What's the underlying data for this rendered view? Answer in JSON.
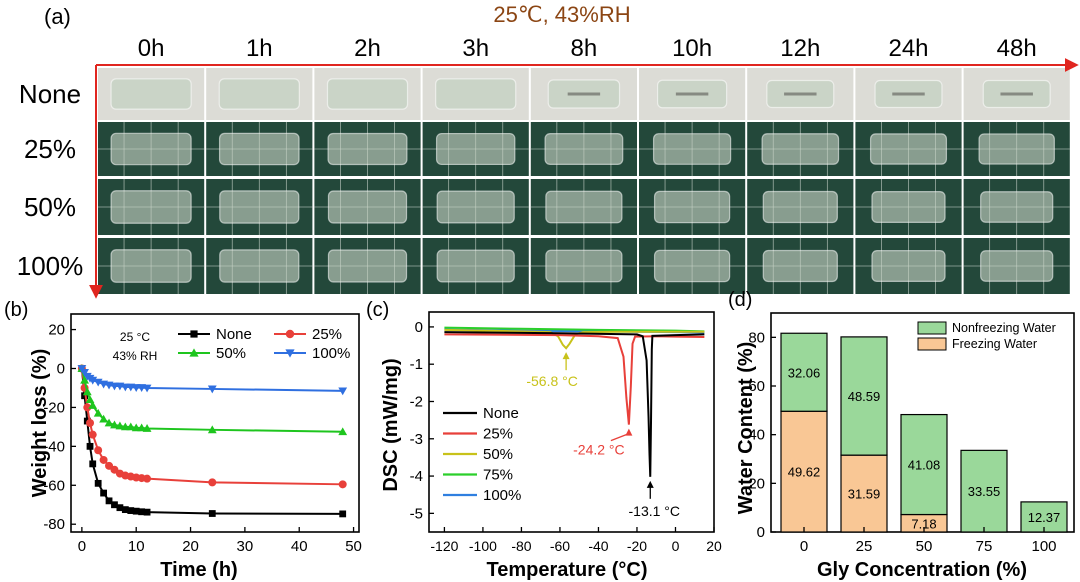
{
  "panel_a": {
    "label": "(a)",
    "title": "25℃, 43%RH",
    "columns": [
      "0h",
      "1h",
      "2h",
      "3h",
      "8h",
      "10h",
      "12h",
      "24h",
      "48h"
    ],
    "rows": [
      "None",
      "25%",
      "50%",
      "100%"
    ],
    "colors": {
      "title": "#8B4513",
      "arrow": "#e0261f",
      "row_none_bg": "#dcdcd6",
      "row_grid_bg": "#23483a",
      "sample": "#c7d2c4"
    }
  },
  "chart_data": [
    {
      "panel": "(b)",
      "type": "line",
      "title": "",
      "xlabel": "Time (h)",
      "ylabel": "Weight loss (%)",
      "xlim": [
        -2,
        51
      ],
      "ylim": [
        -84,
        28
      ],
      "xticks": [
        0,
        10,
        20,
        30,
        40,
        50
      ],
      "yticks": [
        20,
        0,
        -20,
        -40,
        -60,
        -80
      ],
      "annotation": [
        "25 °C",
        "43% RH"
      ],
      "series": [
        {
          "name": "None",
          "color": "#000000",
          "marker": "square",
          "x": [
            0,
            0.5,
            1,
            1.5,
            2,
            3,
            4,
            5,
            6,
            7,
            8,
            9,
            10,
            11,
            12,
            24,
            48
          ],
          "y": [
            0,
            -14,
            -27,
            -40,
            -49,
            -59,
            -64,
            -68,
            -70,
            -71.5,
            -72.5,
            -73,
            -73.3,
            -73.6,
            -73.8,
            -74.5,
            -74.7
          ]
        },
        {
          "name": "25%",
          "color": "#e8403a",
          "marker": "circle",
          "x": [
            0,
            0.5,
            1,
            1.5,
            2,
            3,
            4,
            5,
            6,
            7,
            8,
            9,
            10,
            11,
            12,
            24,
            48
          ],
          "y": [
            0,
            -10,
            -20,
            -28,
            -34,
            -42,
            -47,
            -50,
            -52,
            -54,
            -55,
            -55.5,
            -56,
            -56.3,
            -56.6,
            -58.5,
            -59.5
          ]
        },
        {
          "name": "50%",
          "color": "#1ec51e",
          "marker": "triangle-up",
          "x": [
            0,
            0.5,
            1,
            1.5,
            2,
            3,
            4,
            5,
            6,
            7,
            8,
            9,
            10,
            11,
            12,
            24,
            48
          ],
          "y": [
            0,
            -6,
            -12,
            -16,
            -19,
            -23,
            -26,
            -28,
            -29,
            -29.5,
            -30,
            -30,
            -30.5,
            -30.5,
            -30.8,
            -31.5,
            -32.5
          ]
        },
        {
          "name": "100%",
          "color": "#2f6fe0",
          "marker": "triangle-down",
          "x": [
            0,
            0.5,
            1,
            1.5,
            2,
            3,
            4,
            5,
            6,
            7,
            8,
            9,
            10,
            11,
            12,
            24,
            48
          ],
          "y": [
            0,
            -2,
            -4,
            -5,
            -6,
            -7,
            -8,
            -8.5,
            -9,
            -9,
            -9.5,
            -9.5,
            -9.8,
            -9.8,
            -10,
            -10.5,
            -11.5
          ]
        }
      ]
    },
    {
      "panel": "(c)",
      "type": "line",
      "title": "",
      "xlabel": "Temperature (°C)",
      "ylabel": "DSC (mW/mg)",
      "xlim": [
        -128,
        20
      ],
      "ylim": [
        -5.5,
        0.4
      ],
      "xticks": [
        -120,
        -100,
        -80,
        -60,
        -40,
        -20,
        0,
        20
      ],
      "yticks": [
        0,
        -1,
        -2,
        -3,
        -4,
        -5
      ],
      "series": [
        {
          "name": "None",
          "color": "#000000",
          "x": [
            -120,
            -60,
            -20,
            -17,
            -15,
            -14,
            -13.5,
            -13.1,
            -12.7,
            -12.3,
            -12,
            0,
            15
          ],
          "y": [
            -0.14,
            -0.17,
            -0.2,
            -0.25,
            -0.9,
            -2.4,
            -3.4,
            -4.02,
            -2.5,
            -0.6,
            -0.24,
            -0.22,
            -0.2
          ]
        },
        {
          "name": "25%",
          "color": "#e8403a",
          "x": [
            -120,
            -60,
            -40,
            -30,
            -27,
            -25.5,
            -24.2,
            -23.2,
            -22.3,
            -21,
            -10,
            0,
            15
          ],
          "y": [
            -0.2,
            -0.22,
            -0.25,
            -0.3,
            -0.8,
            -1.9,
            -2.62,
            -1.6,
            -0.45,
            -0.26,
            -0.25,
            -0.26,
            -0.27
          ]
        },
        {
          "name": "50%",
          "color": "#c8c21a",
          "x": [
            -120,
            -80,
            -65,
            -61,
            -58.5,
            -56.8,
            -55,
            -52,
            -48,
            -30,
            0,
            15
          ],
          "y": [
            -0.08,
            -0.12,
            -0.14,
            -0.25,
            -0.48,
            -0.57,
            -0.45,
            -0.2,
            -0.14,
            -0.13,
            -0.13,
            -0.13
          ]
        },
        {
          "name": "75%",
          "color": "#2bcf2b",
          "x": [
            -120,
            -80,
            -40,
            0,
            15
          ],
          "y": [
            -0.02,
            -0.05,
            -0.08,
            -0.1,
            -0.12
          ]
        },
        {
          "name": "100%",
          "color": "#2f7fe0",
          "x": [
            -120,
            -80,
            -40,
            0,
            15
          ],
          "y": [
            -0.07,
            -0.1,
            -0.12,
            -0.14,
            -0.15
          ]
        }
      ],
      "annotations": [
        {
          "text": "-56.8 °C",
          "x": -56.8,
          "y": -0.57,
          "color": "#c8c21a"
        },
        {
          "text": "-24.2 °C",
          "x": -24.2,
          "y": -2.62,
          "color": "#e8403a"
        },
        {
          "text": "-13.1 °C",
          "x": -13.1,
          "y": -4.02,
          "color": "#000000"
        }
      ]
    },
    {
      "panel": "(d)",
      "type": "bar",
      "stacked": true,
      "title": "",
      "xlabel": "Gly Concentration (%)",
      "ylabel": "Water Content (%)",
      "categories": [
        "0",
        "25",
        "50",
        "75",
        "100"
      ],
      "ylim": [
        0,
        90
      ],
      "yticks": [
        0,
        20,
        40,
        60,
        80
      ],
      "series": [
        {
          "name": "Freezing Water",
          "color": "#f9c795",
          "values": [
            49.62,
            31.59,
            7.18,
            0,
            0
          ]
        },
        {
          "name": "Nonfreezing Water",
          "color": "#9ad89a",
          "values": [
            32.06,
            48.59,
            41.08,
            33.55,
            12.37
          ]
        }
      ],
      "legend_order": [
        "Nonfreezing Water",
        "Freezing Water"
      ]
    }
  ]
}
